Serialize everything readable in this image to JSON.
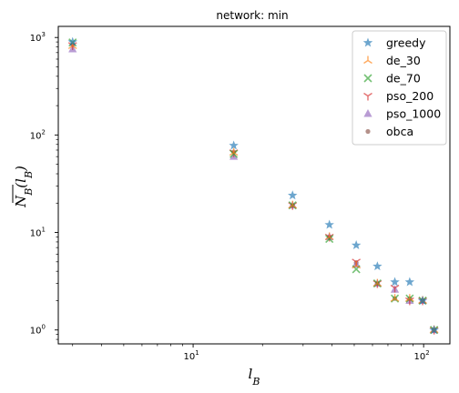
{
  "chart_data": {
    "type": "scatter",
    "title": "network: min",
    "xlabel": "l_B",
    "ylabel": "N_B(l_B)",
    "xscale": "log",
    "yscale": "log",
    "xlim": [
      2.6,
      130
    ],
    "ylim": [
      0.72,
      1300
    ],
    "xticks": [
      {
        "value": 10,
        "base": "10",
        "exp": "1"
      },
      {
        "value": 100,
        "base": "10",
        "exp": "2"
      }
    ],
    "yticks": [
      {
        "value": 1,
        "base": "10",
        "exp": "0"
      },
      {
        "value": 10,
        "base": "10",
        "exp": "1"
      },
      {
        "value": 100,
        "base": "10",
        "exp": "2"
      },
      {
        "value": 1000,
        "base": "10",
        "exp": "3"
      }
    ],
    "legend_position": "top-right",
    "series": [
      {
        "name": "greedy",
        "color": "#1f77b4",
        "marker": "star",
        "x": [
          3,
          15,
          27,
          39,
          51,
          63,
          75,
          87,
          99,
          111
        ],
        "y": [
          900,
          78,
          24,
          12,
          7.4,
          4.5,
          3.1,
          3.1,
          2.0,
          1.0
        ]
      },
      {
        "name": "de_30",
        "color": "#ff7f0e",
        "marker": "tri",
        "x": [
          3,
          15,
          27,
          39,
          51,
          63,
          75,
          87,
          99,
          111
        ],
        "y": [
          820,
          66,
          19,
          9,
          4.6,
          3.0,
          2.1,
          2.1,
          2.0,
          1.0
        ]
      },
      {
        "name": "de_70",
        "color": "#2ca02c",
        "marker": "x",
        "x": [
          3,
          15,
          27,
          39,
          51,
          63,
          75,
          87,
          99,
          111
        ],
        "y": [
          890,
          64,
          19,
          8.6,
          4.2,
          3.0,
          2.1,
          2.1,
          2.0,
          1.0
        ]
      },
      {
        "name": "pso_200",
        "color": "#d62728",
        "marker": "y",
        "x": [
          3,
          15,
          27,
          39,
          51,
          63,
          75,
          87,
          99,
          111
        ],
        "y": [
          830,
          66,
          19,
          9,
          5.0,
          3.0,
          2.7,
          2.0,
          2.0,
          1.0
        ]
      },
      {
        "name": "pso_1000",
        "color": "#9467bd",
        "marker": "triangle",
        "x": [
          3,
          15,
          27,
          39,
          51,
          63,
          75,
          87,
          99,
          111
        ],
        "y": [
          760,
          60,
          19,
          9,
          4.7,
          3.0,
          2.6,
          2.0,
          2.0,
          1.0
        ]
      },
      {
        "name": "obca",
        "color": "#8c564b",
        "marker": "circle",
        "x": [
          3,
          15,
          27,
          39,
          51,
          63,
          75,
          87,
          99,
          111
        ],
        "y": [
          840,
          67,
          19,
          9,
          4.9,
          3.0,
          2.1,
          2.1,
          2.0,
          1.0
        ]
      }
    ]
  }
}
